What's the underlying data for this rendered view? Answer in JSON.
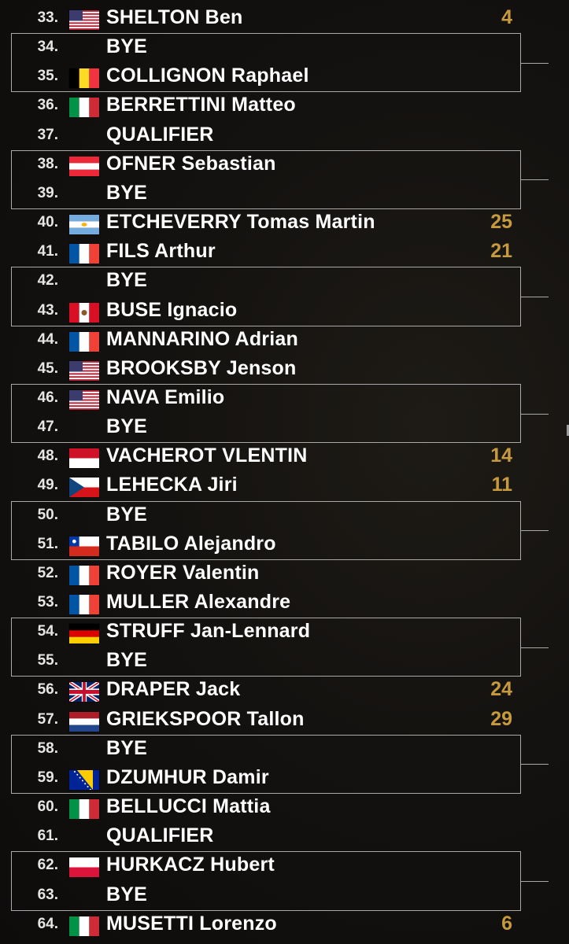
{
  "draw": {
    "entries": [
      {
        "num": "33.",
        "flag": "usa-flag",
        "name": "SHELTON Ben",
        "seed": "4"
      },
      {
        "num": "34.",
        "flag": "",
        "name": "BYE",
        "seed": ""
      },
      {
        "num": "35.",
        "flag": "belgium-flag",
        "name": "COLLIGNON Raphael",
        "seed": ""
      },
      {
        "num": "36.",
        "flag": "italy-flag",
        "name": "BERRETTINI Matteo",
        "seed": ""
      },
      {
        "num": "37.",
        "flag": "",
        "name": "QUALIFIER",
        "seed": ""
      },
      {
        "num": "38.",
        "flag": "austria-flag",
        "name": "OFNER Sebastian",
        "seed": ""
      },
      {
        "num": "39.",
        "flag": "",
        "name": "BYE",
        "seed": ""
      },
      {
        "num": "40.",
        "flag": "argentina-flag",
        "name": "ETCHEVERRY Tomas Martin",
        "seed": "25"
      },
      {
        "num": "41.",
        "flag": "france-flag",
        "name": "FILS Arthur",
        "seed": "21"
      },
      {
        "num": "42.",
        "flag": "",
        "name": "BYE",
        "seed": ""
      },
      {
        "num": "43.",
        "flag": "peru-flag",
        "name": "BUSE Ignacio",
        "seed": ""
      },
      {
        "num": "44.",
        "flag": "france-flag",
        "name": "MANNARINO Adrian",
        "seed": ""
      },
      {
        "num": "45.",
        "flag": "usa-flag",
        "name": "BROOKSBY Jenson",
        "seed": ""
      },
      {
        "num": "46.",
        "flag": "usa-flag",
        "name": "NAVA Emilio",
        "seed": ""
      },
      {
        "num": "47.",
        "flag": "",
        "name": "BYE",
        "seed": ""
      },
      {
        "num": "48.",
        "flag": "monaco-flag",
        "name": "VACHEROT VLENTIN",
        "seed": "14"
      },
      {
        "num": "49.",
        "flag": "czech-flag",
        "name": "LEHECKA Jiri",
        "seed": "11"
      },
      {
        "num": "50.",
        "flag": "",
        "name": "BYE",
        "seed": ""
      },
      {
        "num": "51.",
        "flag": "chile-flag",
        "name": "TABILO Alejandro",
        "seed": ""
      },
      {
        "num": "52.",
        "flag": "france-flag",
        "name": "ROYER Valentin",
        "seed": ""
      },
      {
        "num": "53.",
        "flag": "france-flag",
        "name": "MULLER Alexandre",
        "seed": ""
      },
      {
        "num": "54.",
        "flag": "germany-flag",
        "name": "STRUFF Jan-Lennard",
        "seed": ""
      },
      {
        "num": "55.",
        "flag": "",
        "name": "BYE",
        "seed": ""
      },
      {
        "num": "56.",
        "flag": "uk-flag",
        "name": "DRAPER Jack",
        "seed": "24"
      },
      {
        "num": "57.",
        "flag": "netherlands-flag",
        "name": "GRIEKSPOOR Tallon",
        "seed": "29"
      },
      {
        "num": "58.",
        "flag": "",
        "name": "BYE",
        "seed": ""
      },
      {
        "num": "59.",
        "flag": "bosnia-flag",
        "name": "DZUMHUR Damir",
        "seed": ""
      },
      {
        "num": "60.",
        "flag": "italy-flag",
        "name": "BELLUCCI Mattia",
        "seed": ""
      },
      {
        "num": "61.",
        "flag": "",
        "name": "QUALIFIER",
        "seed": ""
      },
      {
        "num": "62.",
        "flag": "poland-flag",
        "name": "HURKACZ Hubert",
        "seed": ""
      },
      {
        "num": "63.",
        "flag": "",
        "name": "BYE",
        "seed": ""
      },
      {
        "num": "64.",
        "flag": "italy-flag",
        "name": "MUSETTI Lorenzo",
        "seed": "6"
      }
    ],
    "bracket_pairs": [
      [
        "34.",
        "35."
      ],
      [
        "38.",
        "39."
      ],
      [
        "42.",
        "43."
      ],
      [
        "46.",
        "47."
      ],
      [
        "50.",
        "51."
      ],
      [
        "54.",
        "55."
      ],
      [
        "58.",
        "59."
      ],
      [
        "62.",
        "63."
      ]
    ],
    "colors": {
      "background": "#141210",
      "name_text": "#ffffff",
      "number_text": "#e6e6e6",
      "seed_text": "#c69a3d",
      "bracket_line": "#a9a9a9"
    }
  }
}
